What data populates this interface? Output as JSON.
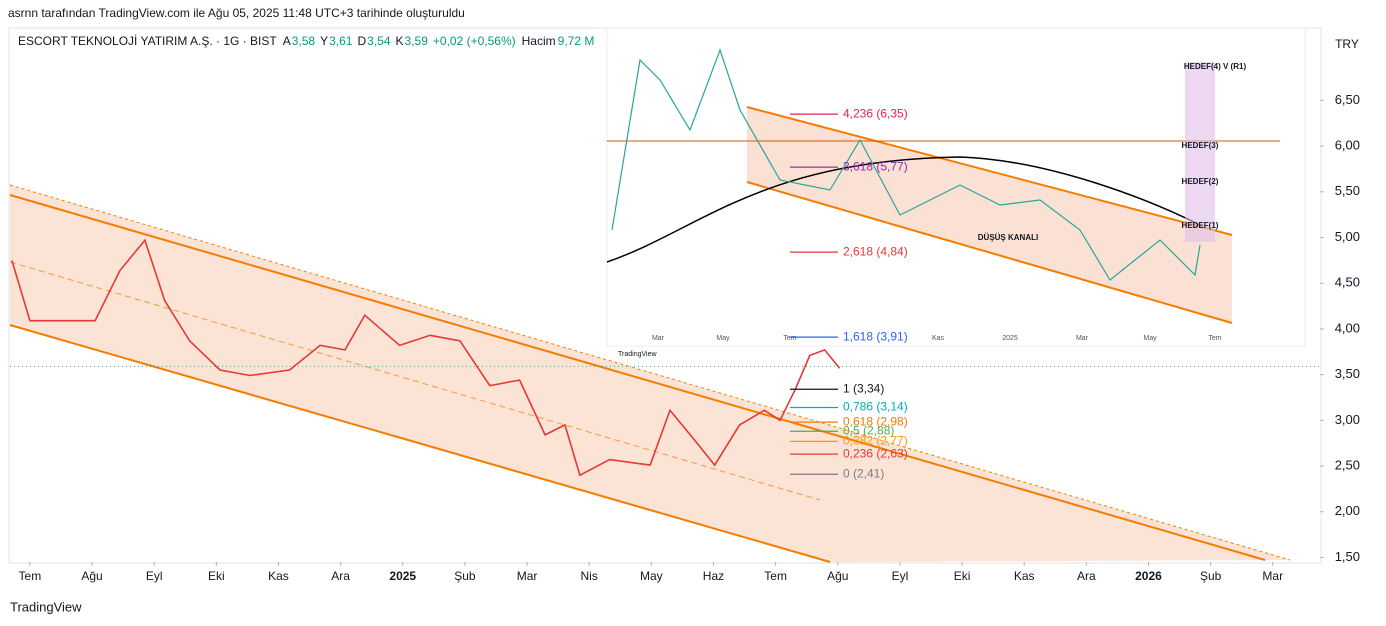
{
  "header": "asrnn tarafından TradingView.com ile Ağu 05, 2025 11:48 UTC+3 tarihinde oluşturuldu",
  "footer": "TradingView",
  "chart_data": {
    "type": "line",
    "legend": {
      "symbol": "ESCORT TEKNOLOJİ YATIRIM A.Ş. · 1G · BIST",
      "fields": [
        {
          "key": "A",
          "value": "3,58"
        },
        {
          "key": "Y",
          "value": "3,61"
        },
        {
          "key": "D",
          "value": "3,54"
        },
        {
          "key": "K",
          "value": "3,59"
        }
      ],
      "change": "+0,02 (+0,56%)",
      "volume_key": "Hacim",
      "volume": "9,72 M"
    },
    "currency": "TRY",
    "x": [
      -0.29,
      0,
      0.48,
      1.05,
      1.45,
      1.85,
      2.17,
      2.57,
      3.06,
      3.54,
      4.18,
      4.67,
      5.07,
      5.39,
      5.95,
      6.44,
      6.92,
      7.4,
      7.88,
      8.29,
      8.61,
      8.85,
      9.33,
      9.98,
      10.3,
      10.7,
      11.02,
      11.42,
      11.82,
      12.07,
      12.31,
      12.55,
      12.79,
      13.03
    ],
    "series": [
      {
        "name": "ESCORT",
        "color": "#e53935",
        "values": [
          4.75,
          4.09,
          4.09,
          4.09,
          4.64,
          4.97,
          4.31,
          3.87,
          3.55,
          3.49,
          3.55,
          3.82,
          3.77,
          4.15,
          3.82,
          3.93,
          3.87,
          3.38,
          3.44,
          2.84,
          2.95,
          2.4,
          2.57,
          2.51,
          3.11,
          2.78,
          2.51,
          2.95,
          3.11,
          3,
          3.33,
          3.71,
          3.77,
          3.57
        ]
      }
    ],
    "last_price": 3.59,
    "xlim": [
      -0.32,
      20.76
    ],
    "xticks": [
      {
        "value": 0,
        "label": "Tem"
      },
      {
        "value": 1,
        "label": "Ağu"
      },
      {
        "value": 2,
        "label": "Eyl"
      },
      {
        "value": 3,
        "label": "Eki"
      },
      {
        "value": 4,
        "label": "Kas"
      },
      {
        "value": 5,
        "label": "Ara"
      },
      {
        "value": 6,
        "label": "2025"
      },
      {
        "value": 7,
        "label": "Şub"
      },
      {
        "value": 8,
        "label": "Mar"
      },
      {
        "value": 9,
        "label": "Nis"
      },
      {
        "value": 10,
        "label": "May"
      },
      {
        "value": 11,
        "label": "Haz"
      },
      {
        "value": 12,
        "label": "Tem"
      },
      {
        "value": 13,
        "label": "Ağu"
      },
      {
        "value": 14,
        "label": "Eyl"
      },
      {
        "value": 15,
        "label": "Eki"
      },
      {
        "value": 16,
        "label": "Kas"
      },
      {
        "value": 17,
        "label": "Ara"
      },
      {
        "value": 18,
        "label": "2026"
      },
      {
        "value": 19,
        "label": "Şub"
      },
      {
        "value": 20,
        "label": "Mar"
      }
    ],
    "ylim": [
      1.45,
      7.27
    ],
    "yticks": [
      {
        "value": 6.5,
        "label": "6,50"
      },
      {
        "value": 6,
        "label": "6,00"
      },
      {
        "value": 5.5,
        "label": "5,50"
      },
      {
        "value": 5,
        "label": "5,00"
      },
      {
        "value": 4.5,
        "label": "4,50"
      },
      {
        "value": 4,
        "label": "4,00"
      },
      {
        "value": 3.5,
        "label": "3,50"
      },
      {
        "value": 3,
        "label": "3,00"
      },
      {
        "value": 2.5,
        "label": "2,50"
      },
      {
        "value": 2,
        "label": "2,00"
      },
      {
        "value": 1.5,
        "label": "1,50"
      }
    ],
    "fib_levels": [
      {
        "value": 6.35,
        "label": "4,236 (6,35)",
        "color": "#e91e63"
      },
      {
        "value": 5.77,
        "label": "3,618 (5,77)",
        "color": "#9c27b0"
      },
      {
        "value": 4.84,
        "label": "2,618 (4,84)",
        "color": "#e53935"
      },
      {
        "value": 3.91,
        "label": "1,618 (3,91)",
        "color": "#2962ff"
      },
      {
        "value": 3.34,
        "label": "1 (3,34)",
        "color": "#131722"
      },
      {
        "value": 3.14,
        "label": "0,786 (3,14)",
        "color": "#00acc1"
      },
      {
        "value": 2.98,
        "label": "0,618 (2,98)",
        "color": "#f57c00"
      },
      {
        "value": 2.88,
        "label": "0,5 (2,88)",
        "color": "#4caf50"
      },
      {
        "value": 2.77,
        "label": "0,382 (2,77)",
        "color": "#ff9800"
      },
      {
        "value": 2.63,
        "label": "0,236 (2,63)",
        "color": "#e53935"
      },
      {
        "value": 2.41,
        "label": "0 (2,41)",
        "color": "#787b86"
      }
    ]
  },
  "inset": {
    "annotations": [
      "DÜŞÜŞ KANALI",
      "HEDEF(1)",
      "HEDEF(2)",
      "HEDEF(3)",
      "HEDEF(4) V (R1)"
    ],
    "months": [
      "Mar",
      "May",
      "Tem",
      "Kas",
      "2025",
      "Mar",
      "May",
      "Tem"
    ],
    "brand": "TradingView"
  }
}
